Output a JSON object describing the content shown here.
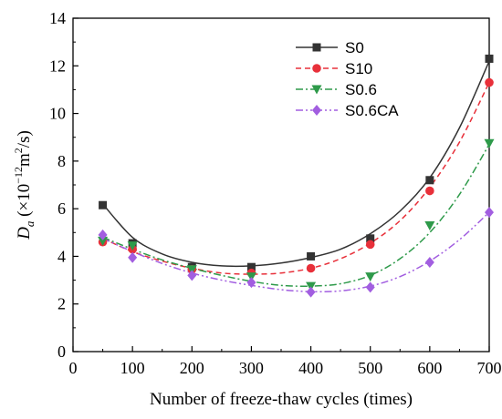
{
  "chart_data": {
    "type": "scatter",
    "xlabel": "Number of freeze-thaw cycles (times)",
    "ylabel": {
      "symbol": "D",
      "subscript": "a",
      "open": " (×10",
      "exponent": "−12",
      "unit_mid": "m",
      "unit_exp": "2",
      "unit_end": "/s)"
    },
    "xlim": [
      0,
      700
    ],
    "ylim": [
      0,
      14
    ],
    "x_ticks": [
      0,
      100,
      200,
      300,
      400,
      500,
      600,
      700
    ],
    "y_ticks": [
      0,
      2,
      4,
      6,
      8,
      10,
      12,
      14
    ],
    "grid": false,
    "legend_position": "top-right",
    "x": [
      50,
      100,
      200,
      300,
      400,
      500,
      600,
      700
    ],
    "series": [
      {
        "name": "S0",
        "color": "#333333",
        "marker": "square",
        "line_style": "solid",
        "values": [
          6.15,
          4.55,
          3.55,
          3.55,
          4.0,
          4.75,
          7.2,
          12.3
        ],
        "fit": [
          [
            50,
            6.2
          ],
          [
            100,
            4.8
          ],
          [
            150,
            4.1
          ],
          [
            200,
            3.75
          ],
          [
            250,
            3.6
          ],
          [
            300,
            3.6
          ],
          [
            350,
            3.72
          ],
          [
            400,
            3.95
          ],
          [
            450,
            4.3
          ],
          [
            500,
            4.95
          ],
          [
            550,
            5.9
          ],
          [
            600,
            7.3
          ],
          [
            650,
            9.4
          ],
          [
            700,
            12.2
          ]
        ]
      },
      {
        "name": "S10",
        "color": "#e8303a",
        "marker": "circle",
        "line_style": "dashed",
        "values": [
          4.6,
          4.3,
          3.45,
          3.3,
          3.5,
          4.5,
          6.75,
          11.3
        ],
        "fit": [
          [
            50,
            4.75
          ],
          [
            100,
            4.2
          ],
          [
            150,
            3.8
          ],
          [
            200,
            3.5
          ],
          [
            250,
            3.3
          ],
          [
            300,
            3.25
          ],
          [
            350,
            3.3
          ],
          [
            400,
            3.5
          ],
          [
            450,
            3.9
          ],
          [
            500,
            4.55
          ],
          [
            550,
            5.5
          ],
          [
            600,
            6.9
          ],
          [
            650,
            8.8
          ],
          [
            700,
            11.3
          ]
        ]
      },
      {
        "name": "S0.6",
        "color": "#2e9a4a",
        "marker": "triangle-down",
        "line_style": "dash-dot",
        "values": [
          4.65,
          4.45,
          3.45,
          3.15,
          2.75,
          3.15,
          5.3,
          8.75
        ],
        "fit": [
          [
            50,
            4.8
          ],
          [
            100,
            4.3
          ],
          [
            150,
            3.85
          ],
          [
            200,
            3.5
          ],
          [
            250,
            3.2
          ],
          [
            300,
            2.95
          ],
          [
            350,
            2.78
          ],
          [
            400,
            2.75
          ],
          [
            450,
            2.85
          ],
          [
            500,
            3.2
          ],
          [
            550,
            3.9
          ],
          [
            600,
            5.0
          ],
          [
            650,
            6.6
          ],
          [
            700,
            8.7
          ]
        ]
      },
      {
        "name": "S0.6CA",
        "color": "#a25ee0",
        "marker": "diamond",
        "line_style": "dash-dot-dot",
        "values": [
          4.9,
          3.95,
          3.2,
          2.9,
          2.5,
          2.7,
          3.75,
          5.85
        ],
        "fit": [
          [
            50,
            4.75
          ],
          [
            100,
            4.2
          ],
          [
            150,
            3.7
          ],
          [
            200,
            3.3
          ],
          [
            250,
            3.0
          ],
          [
            300,
            2.78
          ],
          [
            350,
            2.6
          ],
          [
            400,
            2.52
          ],
          [
            450,
            2.55
          ],
          [
            500,
            2.75
          ],
          [
            550,
            3.15
          ],
          [
            600,
            3.8
          ],
          [
            650,
            4.7
          ],
          [
            700,
            5.85
          ]
        ]
      }
    ]
  }
}
